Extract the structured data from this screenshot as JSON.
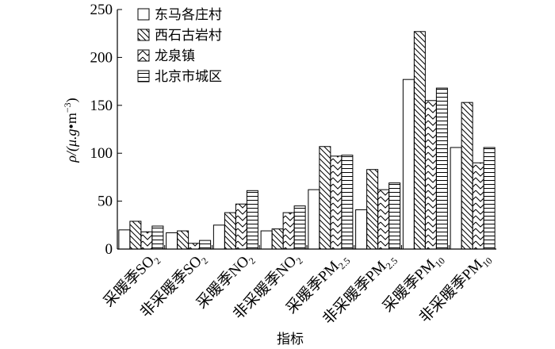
{
  "chart_data": {
    "type": "bar",
    "ylabel": {
      "prefix": "ρ/(μ.g",
      "dot": "•",
      "unit": "m",
      "exp": "−3",
      "suffix": ")"
    },
    "xlabel": "指标",
    "ylim": [
      0,
      250
    ],
    "yticks": [
      0,
      50,
      100,
      150,
      200,
      250
    ],
    "grid": false,
    "legend_position": "top-left",
    "categories": [
      {
        "main": "采暖季SO",
        "sub": "2"
      },
      {
        "main": "非采暖季SO",
        "sub": "2"
      },
      {
        "main": "采暖季NO",
        "sub": "2"
      },
      {
        "main": "非采暖季NO",
        "sub": "2"
      },
      {
        "main": "采暖季PM",
        "sub": "2.5"
      },
      {
        "main": "非采暖季PM",
        "sub": "2.5"
      },
      {
        "main": "采暖季PM",
        "sub": "10"
      },
      {
        "main": "非采暖季PM",
        "sub": "10"
      }
    ],
    "series": [
      {
        "name": "东马各庄村",
        "pattern": "none",
        "values": [
          20,
          17,
          25,
          19,
          62,
          41,
          177,
          106
        ]
      },
      {
        "name": "西石古岩村",
        "pattern": "backslash",
        "values": [
          29,
          19,
          38,
          21,
          107,
          83,
          227,
          153
        ]
      },
      {
        "name": "龙泉镇",
        "pattern": "chevron",
        "values": [
          18,
          6,
          47,
          38,
          97,
          62,
          155,
          90
        ]
      },
      {
        "name": "北京市城区",
        "pattern": "horizontal",
        "values": [
          24,
          9,
          61,
          45,
          98,
          69,
          168,
          106
        ]
      }
    ]
  }
}
